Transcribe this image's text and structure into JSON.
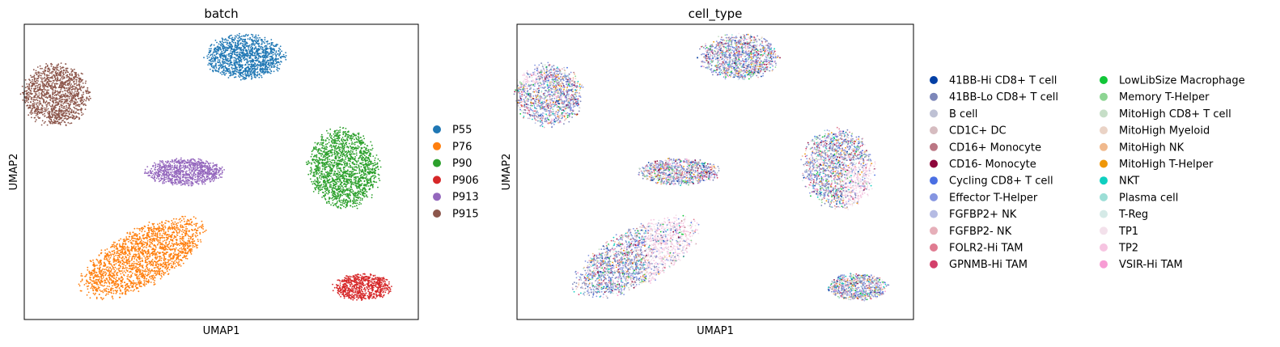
{
  "chart_data": [
    {
      "type": "scatter",
      "title": "batch",
      "xlabel": "UMAP1",
      "ylabel": "UMAP2",
      "xlim": [
        0,
        10
      ],
      "ylim": [
        0,
        10
      ],
      "grid": false,
      "ticks": false,
      "legend_position": "right",
      "legend_columns": 1,
      "legend": [
        {
          "name": "P55",
          "color": "#1f77b4"
        },
        {
          "name": "P76",
          "color": "#ff7f0e"
        },
        {
          "name": "P90",
          "color": "#2ca02c"
        },
        {
          "name": "P906",
          "color": "#d62728"
        },
        {
          "name": "P913",
          "color": "#9467bd"
        },
        {
          "name": "P915",
          "color": "#8c564b"
        }
      ],
      "clusters": [
        {
          "category": "P55",
          "cx": 5.6,
          "cy": 8.9,
          "rx": 1.0,
          "ry": 0.75,
          "rot": 0,
          "n": 1300
        },
        {
          "category": "P915",
          "cx": 0.8,
          "cy": 7.6,
          "rx": 0.85,
          "ry": 1.05,
          "rot": 0,
          "n": 1300
        },
        {
          "category": "P913",
          "cx": 4.1,
          "cy": 5.0,
          "rx": 1.0,
          "ry": 0.45,
          "rot": 0,
          "n": 900
        },
        {
          "category": "P90",
          "cx": 8.1,
          "cy": 5.1,
          "rx": 0.9,
          "ry": 1.35,
          "rot": -12,
          "n": 1700
        },
        {
          "category": "P76",
          "cx": 3.0,
          "cy": 2.1,
          "rx": 1.7,
          "ry": 0.95,
          "rot": -28,
          "n": 2000
        },
        {
          "category": "P906",
          "cx": 8.6,
          "cy": 1.1,
          "rx": 0.75,
          "ry": 0.45,
          "rot": 0,
          "n": 700
        }
      ]
    },
    {
      "type": "scatter",
      "title": "cell_type",
      "xlabel": "UMAP1",
      "ylabel": "UMAP2",
      "xlim": [
        0,
        10
      ],
      "ylim": [
        0,
        10
      ],
      "grid": false,
      "ticks": false,
      "legend_position": "right",
      "legend_columns": 2,
      "legend": [
        {
          "name": "41BB-Hi CD8+ T cell",
          "color": "#023fa5"
        },
        {
          "name": "41BB-Lo CD8+ T cell",
          "color": "#7d87b9"
        },
        {
          "name": "B cell",
          "color": "#bec1d4"
        },
        {
          "name": "CD1C+ DC",
          "color": "#d6bcc0"
        },
        {
          "name": "CD16+ Monocyte",
          "color": "#bb7784"
        },
        {
          "name": "CD16- Monocyte",
          "color": "#8e063b"
        },
        {
          "name": "Cycling CD8+ T cell",
          "color": "#4a6fe3"
        },
        {
          "name": "Effector T-Helper",
          "color": "#8595e1"
        },
        {
          "name": "FGFBP2+ NK",
          "color": "#b5bbe3"
        },
        {
          "name": "FGFBP2- NK",
          "color": "#e6afb9"
        },
        {
          "name": "FOLR2-Hi TAM",
          "color": "#e07b91"
        },
        {
          "name": "GPNMB-Hi TAM",
          "color": "#d33f6a"
        },
        {
          "name": "LowLibSize Macrophage",
          "color": "#11c638"
        },
        {
          "name": "Memory T-Helper",
          "color": "#8dd593"
        },
        {
          "name": "MitoHigh CD8+ T cell",
          "color": "#c6dec7"
        },
        {
          "name": "MitoHigh Myeloid",
          "color": "#ead3c6"
        },
        {
          "name": "MitoHigh NK",
          "color": "#f0b98d"
        },
        {
          "name": "MitoHigh T-Helper",
          "color": "#ef9708"
        },
        {
          "name": "NKT",
          "color": "#0fcfc0"
        },
        {
          "name": "Plasma cell",
          "color": "#9cded6"
        },
        {
          "name": "T-Reg",
          "color": "#d5eae7"
        },
        {
          "name": "TP1",
          "color": "#f3e1eb"
        },
        {
          "name": "TP2",
          "color": "#f6c4e1"
        },
        {
          "name": "VSIR-Hi TAM",
          "color": "#f79cd4"
        }
      ],
      "clusters": [
        {
          "batch": "P55",
          "cx": 5.6,
          "cy": 8.9,
          "rx": 1.0,
          "ry": 0.75,
          "rot": 0,
          "n": 1300
        },
        {
          "batch": "P915",
          "cx": 0.8,
          "cy": 7.6,
          "rx": 0.85,
          "ry": 1.05,
          "rot": 0,
          "n": 1300
        },
        {
          "batch": "P913",
          "cx": 4.1,
          "cy": 5.0,
          "rx": 1.0,
          "ry": 0.45,
          "rot": 0,
          "n": 900
        },
        {
          "batch": "P90",
          "cx": 8.1,
          "cy": 5.1,
          "rx": 0.9,
          "ry": 1.35,
          "rot": -12,
          "n": 1700
        },
        {
          "batch": "P76",
          "cx": 3.0,
          "cy": 2.1,
          "rx": 1.7,
          "ry": 0.95,
          "rot": -28,
          "n": 2000
        },
        {
          "batch": "P906",
          "cx": 8.6,
          "cy": 1.1,
          "rx": 0.75,
          "ry": 0.45,
          "rot": 0,
          "n": 700
        }
      ]
    }
  ]
}
